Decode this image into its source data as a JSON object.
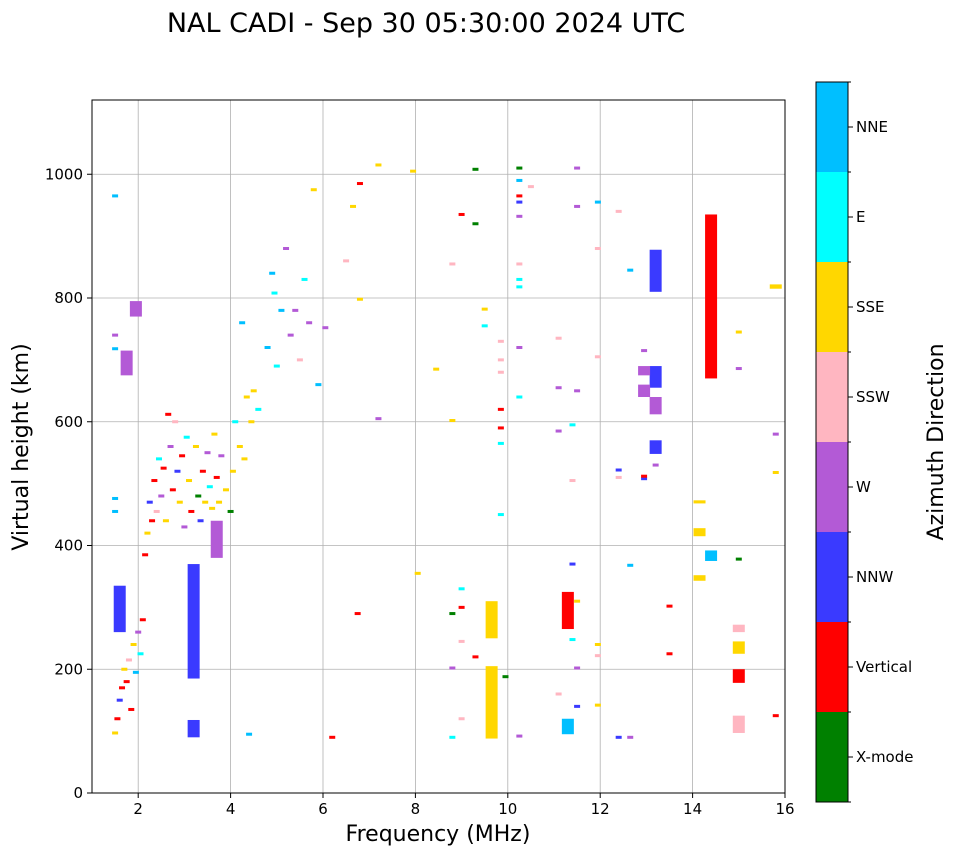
{
  "chart_data": {
    "type": "scatter",
    "title": "NAL CADI - Sep 30 05:30:00 2024 UTC",
    "xlabel": "Frequency (MHz)",
    "ylabel": "Virtual height (km)",
    "xlim": [
      1,
      16
    ],
    "ylim": [
      0,
      1120
    ],
    "xticks": [
      2,
      4,
      6,
      8,
      10,
      12,
      14,
      16
    ],
    "yticks": [
      0,
      200,
      400,
      600,
      800,
      1000
    ],
    "grid": true,
    "colorbar": {
      "label": "Azimuth Direction",
      "categories": [
        {
          "name": "X-mode",
          "color": "#008000"
        },
        {
          "name": "Vertical",
          "color": "#ff0000"
        },
        {
          "name": "NNW",
          "color": "#3a3aff"
        },
        {
          "name": "W",
          "color": "#b35ad6"
        },
        {
          "name": "SSW",
          "color": "#ffb6c1"
        },
        {
          "name": "SSE",
          "color": "#ffd700"
        },
        {
          "name": "E",
          "color": "#00ffff"
        },
        {
          "name": "NNE",
          "color": "#00bfff"
        }
      ]
    },
    "segments": [
      {
        "f": 14.4,
        "h0": 670,
        "h1": 935,
        "dir": "Vertical"
      },
      {
        "f": 14.4,
        "h0": 375,
        "h1": 392,
        "dir": "NNE"
      },
      {
        "f": 14.15,
        "h0": 415,
        "h1": 428,
        "dir": "SSE"
      },
      {
        "f": 14.15,
        "h0": 343,
        "h1": 352,
        "dir": "SSE"
      },
      {
        "f": 14.15,
        "h0": 468,
        "h1": 473,
        "dir": "SSE"
      },
      {
        "f": 13.2,
        "h0": 810,
        "h1": 878,
        "dir": "NNW"
      },
      {
        "f": 13.2,
        "h0": 548,
        "h1": 570,
        "dir": "NNW"
      },
      {
        "f": 13.2,
        "h0": 655,
        "h1": 690,
        "dir": "NNW"
      },
      {
        "f": 13.2,
        "h0": 612,
        "h1": 640,
        "dir": "W"
      },
      {
        "f": 12.95,
        "h0": 640,
        "h1": 660,
        "dir": "W"
      },
      {
        "f": 12.95,
        "h0": 675,
        "h1": 690,
        "dir": "W"
      },
      {
        "f": 11.3,
        "h0": 265,
        "h1": 325,
        "dir": "Vertical"
      },
      {
        "f": 11.3,
        "h0": 95,
        "h1": 120,
        "dir": "NNE"
      },
      {
        "f": 9.65,
        "h0": 88,
        "h1": 205,
        "dir": "SSE"
      },
      {
        "f": 9.65,
        "h0": 250,
        "h1": 310,
        "dir": "SSE"
      },
      {
        "f": 3.2,
        "h0": 185,
        "h1": 370,
        "dir": "NNW"
      },
      {
        "f": 3.2,
        "h0": 90,
        "h1": 118,
        "dir": "NNW"
      },
      {
        "f": 1.6,
        "h0": 260,
        "h1": 335,
        "dir": "NNW"
      },
      {
        "f": 1.75,
        "h0": 675,
        "h1": 715,
        "dir": "W"
      },
      {
        "f": 1.95,
        "h0": 770,
        "h1": 795,
        "dir": "W"
      },
      {
        "f": 3.7,
        "h0": 380,
        "h1": 440,
        "dir": "W"
      },
      {
        "f": 15.0,
        "h0": 178,
        "h1": 200,
        "dir": "Vertical"
      },
      {
        "f": 15.0,
        "h0": 225,
        "h1": 245,
        "dir": "SSE"
      },
      {
        "f": 15.0,
        "h0": 260,
        "h1": 272,
        "dir": "SSW"
      },
      {
        "f": 15.0,
        "h0": 97,
        "h1": 125,
        "dir": "SSW"
      },
      {
        "f": 15.8,
        "h0": 815,
        "h1": 822,
        "dir": "SSE"
      }
    ],
    "points": [
      {
        "f": 1.5,
        "h": 965,
        "dir": "NNE"
      },
      {
        "f": 1.5,
        "h": 740,
        "dir": "W"
      },
      {
        "f": 1.5,
        "h": 718,
        "dir": "NNE"
      },
      {
        "f": 1.5,
        "h": 476,
        "dir": "NNE"
      },
      {
        "f": 1.5,
        "h": 455,
        "dir": "NNE"
      },
      {
        "f": 1.5,
        "h": 97,
        "dir": "SSE"
      },
      {
        "f": 1.55,
        "h": 120,
        "dir": "Vertical"
      },
      {
        "f": 1.6,
        "h": 150,
        "dir": "NNW"
      },
      {
        "f": 1.65,
        "h": 170,
        "dir": "Vertical"
      },
      {
        "f": 1.7,
        "h": 200,
        "dir": "SSE"
      },
      {
        "f": 1.75,
        "h": 180,
        "dir": "Vertical"
      },
      {
        "f": 1.8,
        "h": 215,
        "dir": "SSW"
      },
      {
        "f": 1.85,
        "h": 135,
        "dir": "Vertical"
      },
      {
        "f": 1.9,
        "h": 240,
        "dir": "SSE"
      },
      {
        "f": 1.95,
        "h": 195,
        "dir": "NNE"
      },
      {
        "f": 2.0,
        "h": 260,
        "dir": "W"
      },
      {
        "f": 2.05,
        "h": 225,
        "dir": "E"
      },
      {
        "f": 2.1,
        "h": 280,
        "dir": "Vertical"
      },
      {
        "f": 2.15,
        "h": 385,
        "dir": "Vertical"
      },
      {
        "f": 2.2,
        "h": 420,
        "dir": "SSE"
      },
      {
        "f": 2.25,
        "h": 470,
        "dir": "NNW"
      },
      {
        "f": 2.3,
        "h": 440,
        "dir": "Vertical"
      },
      {
        "f": 2.35,
        "h": 505,
        "dir": "Vertical"
      },
      {
        "f": 2.4,
        "h": 455,
        "dir": "SSW"
      },
      {
        "f": 2.45,
        "h": 540,
        "dir": "E"
      },
      {
        "f": 2.5,
        "h": 480,
        "dir": "W"
      },
      {
        "f": 2.55,
        "h": 525,
        "dir": "Vertical"
      },
      {
        "f": 2.6,
        "h": 440,
        "dir": "SSE"
      },
      {
        "f": 2.65,
        "h": 612,
        "dir": "Vertical"
      },
      {
        "f": 2.7,
        "h": 560,
        "dir": "W"
      },
      {
        "f": 2.75,
        "h": 490,
        "dir": "Vertical"
      },
      {
        "f": 2.8,
        "h": 600,
        "dir": "SSW"
      },
      {
        "f": 2.85,
        "h": 520,
        "dir": "NNW"
      },
      {
        "f": 2.9,
        "h": 470,
        "dir": "SSE"
      },
      {
        "f": 2.95,
        "h": 545,
        "dir": "Vertical"
      },
      {
        "f": 3.0,
        "h": 430,
        "dir": "W"
      },
      {
        "f": 3.05,
        "h": 575,
        "dir": "E"
      },
      {
        "f": 3.1,
        "h": 505,
        "dir": "SSE"
      },
      {
        "f": 3.15,
        "h": 455,
        "dir": "Vertical"
      },
      {
        "f": 3.25,
        "h": 560,
        "dir": "SSE"
      },
      {
        "f": 3.3,
        "h": 480,
        "dir": "X-mode"
      },
      {
        "f": 3.35,
        "h": 440,
        "dir": "NNW"
      },
      {
        "f": 3.4,
        "h": 520,
        "dir": "Vertical"
      },
      {
        "f": 3.45,
        "h": 470,
        "dir": "SSE"
      },
      {
        "f": 3.5,
        "h": 550,
        "dir": "W"
      },
      {
        "f": 3.55,
        "h": 495,
        "dir": "E"
      },
      {
        "f": 3.6,
        "h": 460,
        "dir": "SSE"
      },
      {
        "f": 3.65,
        "h": 580,
        "dir": "SSE"
      },
      {
        "f": 3.7,
        "h": 510,
        "dir": "Vertical"
      },
      {
        "f": 3.75,
        "h": 470,
        "dir": "SSE"
      },
      {
        "f": 3.8,
        "h": 545,
        "dir": "W"
      },
      {
        "f": 3.9,
        "h": 490,
        "dir": "SSE"
      },
      {
        "f": 4.0,
        "h": 455,
        "dir": "X-mode"
      },
      {
        "f": 4.05,
        "h": 520,
        "dir": "SSE"
      },
      {
        "f": 4.1,
        "h": 600,
        "dir": "E"
      },
      {
        "f": 4.2,
        "h": 560,
        "dir": "SSE"
      },
      {
        "f": 4.25,
        "h": 760,
        "dir": "NNE"
      },
      {
        "f": 4.3,
        "h": 540,
        "dir": "SSE"
      },
      {
        "f": 4.35,
        "h": 640,
        "dir": "SSE"
      },
      {
        "f": 4.4,
        "h": 95,
        "dir": "NNE"
      },
      {
        "f": 4.45,
        "h": 600,
        "dir": "SSE"
      },
      {
        "f": 4.5,
        "h": 650,
        "dir": "SSE"
      },
      {
        "f": 4.6,
        "h": 620,
        "dir": "E"
      },
      {
        "f": 4.8,
        "h": 720,
        "dir": "NNE"
      },
      {
        "f": 4.9,
        "h": 840,
        "dir": "NNE"
      },
      {
        "f": 4.95,
        "h": 808,
        "dir": "E"
      },
      {
        "f": 5.0,
        "h": 690,
        "dir": "E"
      },
      {
        "f": 5.1,
        "h": 780,
        "dir": "NNE"
      },
      {
        "f": 5.2,
        "h": 880,
        "dir": "W"
      },
      {
        "f": 5.3,
        "h": 740,
        "dir": "W"
      },
      {
        "f": 5.4,
        "h": 780,
        "dir": "W"
      },
      {
        "f": 5.5,
        "h": 700,
        "dir": "SSW"
      },
      {
        "f": 5.6,
        "h": 830,
        "dir": "E"
      },
      {
        "f": 5.7,
        "h": 760,
        "dir": "W"
      },
      {
        "f": 5.8,
        "h": 975,
        "dir": "SSE"
      },
      {
        "f": 5.9,
        "h": 660,
        "dir": "NNE"
      },
      {
        "f": 6.05,
        "h": 752,
        "dir": "W"
      },
      {
        "f": 6.2,
        "h": 90,
        "dir": "Vertical"
      },
      {
        "f": 6.5,
        "h": 860,
        "dir": "SSW"
      },
      {
        "f": 6.65,
        "h": 948,
        "dir": "SSE"
      },
      {
        "f": 6.75,
        "h": 290,
        "dir": "Vertical"
      },
      {
        "f": 6.8,
        "h": 985,
        "dir": "Vertical"
      },
      {
        "f": 6.8,
        "h": 798,
        "dir": "SSE"
      },
      {
        "f": 7.2,
        "h": 605,
        "dir": "W"
      },
      {
        "f": 7.2,
        "h": 1015,
        "dir": "SSE"
      },
      {
        "f": 7.95,
        "h": 1005,
        "dir": "SSE"
      },
      {
        "f": 8.05,
        "h": 355,
        "dir": "SSE"
      },
      {
        "f": 8.45,
        "h": 685,
        "dir": "SSE"
      },
      {
        "f": 8.8,
        "h": 855,
        "dir": "SSW"
      },
      {
        "f": 8.8,
        "h": 602,
        "dir": "SSE"
      },
      {
        "f": 8.8,
        "h": 290,
        "dir": "X-mode"
      },
      {
        "f": 8.8,
        "h": 202,
        "dir": "W"
      },
      {
        "f": 8.8,
        "h": 90,
        "dir": "E"
      },
      {
        "f": 9.0,
        "h": 935,
        "dir": "Vertical"
      },
      {
        "f": 9.0,
        "h": 330,
        "dir": "E"
      },
      {
        "f": 9.0,
        "h": 300,
        "dir": "Vertical"
      },
      {
        "f": 9.0,
        "h": 245,
        "dir": "SSW"
      },
      {
        "f": 9.0,
        "h": 120,
        "dir": "SSW"
      },
      {
        "f": 9.3,
        "h": 1008,
        "dir": "X-mode"
      },
      {
        "f": 9.3,
        "h": 920,
        "dir": "X-mode"
      },
      {
        "f": 9.3,
        "h": 220,
        "dir": "Vertical"
      },
      {
        "f": 9.5,
        "h": 782,
        "dir": "SSE"
      },
      {
        "f": 9.5,
        "h": 755,
        "dir": "E"
      },
      {
        "f": 9.85,
        "h": 730,
        "dir": "SSW"
      },
      {
        "f": 9.85,
        "h": 700,
        "dir": "SSW"
      },
      {
        "f": 9.85,
        "h": 680,
        "dir": "SSW"
      },
      {
        "f": 9.85,
        "h": 620,
        "dir": "Vertical"
      },
      {
        "f": 9.85,
        "h": 590,
        "dir": "Vertical"
      },
      {
        "f": 9.85,
        "h": 565,
        "dir": "E"
      },
      {
        "f": 9.85,
        "h": 450,
        "dir": "E"
      },
      {
        "f": 9.95,
        "h": 188,
        "dir": "X-mode"
      },
      {
        "f": 10.25,
        "h": 1010,
        "dir": "X-mode"
      },
      {
        "f": 10.25,
        "h": 990,
        "dir": "NNE"
      },
      {
        "f": 10.25,
        "h": 965,
        "dir": "Vertical"
      },
      {
        "f": 10.25,
        "h": 955,
        "dir": "NNW"
      },
      {
        "f": 10.25,
        "h": 932,
        "dir": "W"
      },
      {
        "f": 10.25,
        "h": 855,
        "dir": "SSW"
      },
      {
        "f": 10.25,
        "h": 830,
        "dir": "E"
      },
      {
        "f": 10.25,
        "h": 818,
        "dir": "E"
      },
      {
        "f": 10.25,
        "h": 720,
        "dir": "W"
      },
      {
        "f": 10.25,
        "h": 640,
        "dir": "E"
      },
      {
        "f": 10.25,
        "h": 92,
        "dir": "W"
      },
      {
        "f": 10.5,
        "h": 980,
        "dir": "SSW"
      },
      {
        "f": 11.1,
        "h": 735,
        "dir": "SSW"
      },
      {
        "f": 11.1,
        "h": 655,
        "dir": "W"
      },
      {
        "f": 11.1,
        "h": 585,
        "dir": "W"
      },
      {
        "f": 11.1,
        "h": 160,
        "dir": "SSW"
      },
      {
        "f": 11.4,
        "h": 595,
        "dir": "E"
      },
      {
        "f": 11.4,
        "h": 505,
        "dir": "SSW"
      },
      {
        "f": 11.4,
        "h": 370,
        "dir": "NNW"
      },
      {
        "f": 11.4,
        "h": 248,
        "dir": "E"
      },
      {
        "f": 11.5,
        "h": 1010,
        "dir": "W"
      },
      {
        "f": 11.5,
        "h": 948,
        "dir": "W"
      },
      {
        "f": 11.5,
        "h": 650,
        "dir": "W"
      },
      {
        "f": 11.5,
        "h": 310,
        "dir": "SSE"
      },
      {
        "f": 11.5,
        "h": 202,
        "dir": "W"
      },
      {
        "f": 11.5,
        "h": 140,
        "dir": "NNW"
      },
      {
        "f": 11.95,
        "h": 955,
        "dir": "NNE"
      },
      {
        "f": 11.95,
        "h": 880,
        "dir": "SSW"
      },
      {
        "f": 11.95,
        "h": 705,
        "dir": "SSW"
      },
      {
        "f": 11.95,
        "h": 240,
        "dir": "SSE"
      },
      {
        "f": 11.95,
        "h": 222,
        "dir": "SSW"
      },
      {
        "f": 11.95,
        "h": 142,
        "dir": "SSE"
      },
      {
        "f": 12.4,
        "h": 940,
        "dir": "SSW"
      },
      {
        "f": 12.4,
        "h": 522,
        "dir": "NNW"
      },
      {
        "f": 12.4,
        "h": 510,
        "dir": "SSW"
      },
      {
        "f": 12.4,
        "h": 90,
        "dir": "NNW"
      },
      {
        "f": 12.65,
        "h": 845,
        "dir": "NNE"
      },
      {
        "f": 12.65,
        "h": 368,
        "dir": "NNE"
      },
      {
        "f": 12.65,
        "h": 90,
        "dir": "W"
      },
      {
        "f": 12.95,
        "h": 715,
        "dir": "W"
      },
      {
        "f": 12.95,
        "h": 508,
        "dir": "NNW"
      },
      {
        "f": 12.95,
        "h": 512,
        "dir": "Vertical"
      },
      {
        "f": 13.2,
        "h": 530,
        "dir": "W"
      },
      {
        "f": 13.5,
        "h": 302,
        "dir": "Vertical"
      },
      {
        "f": 13.5,
        "h": 225,
        "dir": "Vertical"
      },
      {
        "f": 15.0,
        "h": 745,
        "dir": "SSE"
      },
      {
        "f": 15.0,
        "h": 686,
        "dir": "W"
      },
      {
        "f": 15.0,
        "h": 378,
        "dir": "X-mode"
      },
      {
        "f": 15.8,
        "h": 580,
        "dir": "W"
      },
      {
        "f": 15.8,
        "h": 518,
        "dir": "SSE"
      },
      {
        "f": 15.8,
        "h": 125,
        "dir": "Vertical"
      }
    ]
  }
}
